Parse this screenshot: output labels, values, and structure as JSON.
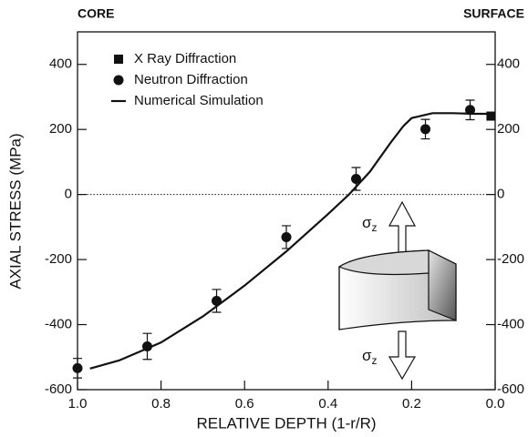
{
  "chart_data": {
    "type": "scatter",
    "corner_left": "CORE",
    "corner_right": "SURFACE",
    "x_label": "RELATIVE DEPTH  (1-r/R)",
    "y_label": "AXIAL STRESS  (MPa)",
    "xlim": [
      1.0,
      0.0
    ],
    "ylim": [
      -600,
      500
    ],
    "xticks": [
      {
        "value": 1.0,
        "label": "1.0"
      },
      0.8,
      0.6,
      0.4,
      0.2,
      {
        "value": 0.0,
        "label": "0.0"
      }
    ],
    "yticks": [
      -600,
      -400,
      -200,
      0,
      200,
      400
    ],
    "zero_line": true,
    "series": [
      {
        "name": "X Ray Diffraction",
        "kind": "marker",
        "marker": "square",
        "color": "#111111",
        "x": [
          0.01
        ],
        "values": [
          241
        ]
      },
      {
        "name": "Neutron Diffraction",
        "kind": "marker",
        "marker": "circle",
        "color": "#111111",
        "x": [
          1.0,
          0.833,
          0.667,
          0.5,
          0.333,
          0.167,
          0.06
        ],
        "values": [
          -534,
          -467,
          -327,
          -131,
          48,
          201,
          260
        ],
        "errors": [
          30,
          40,
          35,
          35,
          35,
          30,
          30
        ]
      },
      {
        "name": "Numerical Simulation",
        "kind": "line",
        "color": "#111111",
        "x": [
          0.97,
          0.9,
          0.8,
          0.7,
          0.6,
          0.5,
          0.4,
          0.35,
          0.3,
          0.25,
          0.22,
          0.2,
          0.15,
          0.1,
          0.05,
          0.0
        ],
        "values": [
          -535,
          -510,
          -455,
          -375,
          -280,
          -175,
          -60,
          0,
          70,
          160,
          210,
          235,
          250,
          250,
          248,
          248
        ]
      }
    ],
    "annotations": [
      {
        "symbol": "σ",
        "subscript": "z"
      },
      {
        "symbol": "σ",
        "subscript": "z"
      }
    ]
  }
}
